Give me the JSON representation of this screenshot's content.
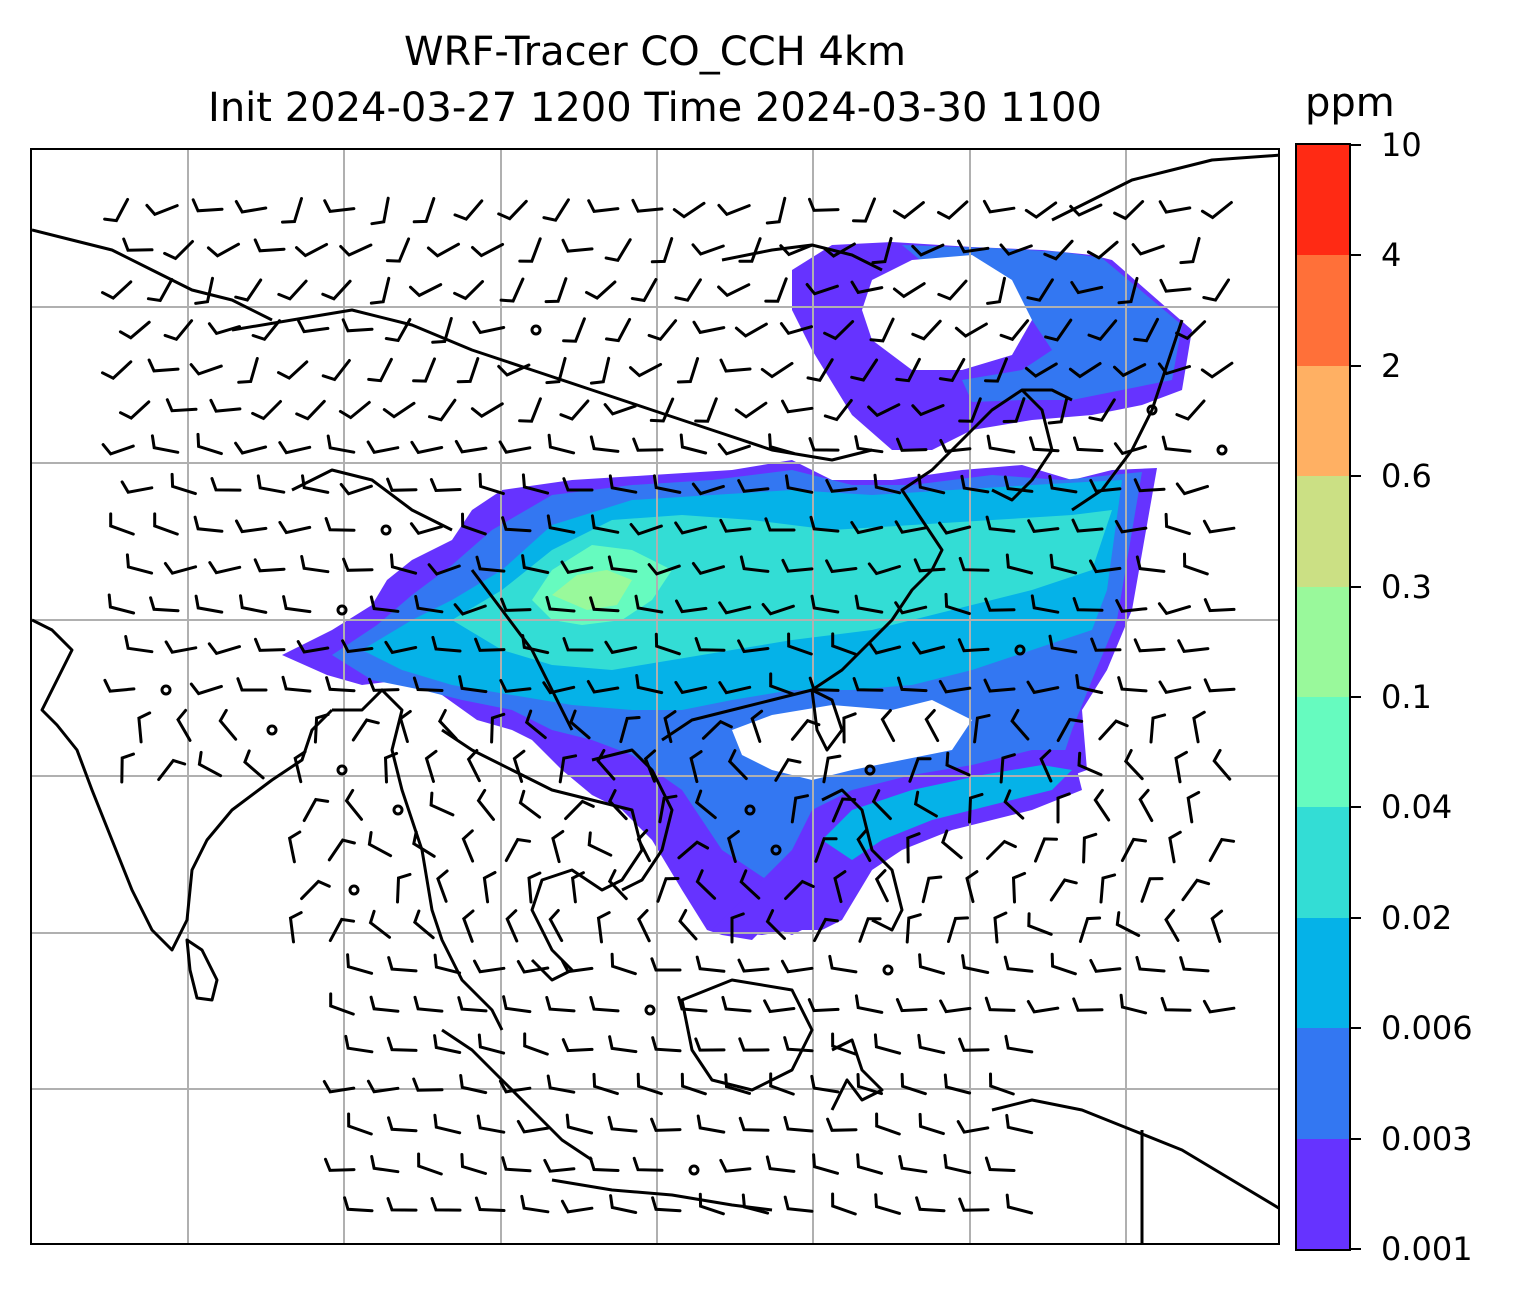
{
  "title_line1": "WRF-Tracer CO_CCH 4km",
  "title_line2": "Init 2024-03-27 1200 Time 2024-03-30 1100",
  "colorbar": {
    "unit_label": "ppm",
    "levels": [
      "0.001",
      "0.003",
      "0.006",
      "0.02",
      "0.04",
      "0.1",
      "0.3",
      "0.6",
      "2",
      "4",
      "10"
    ],
    "colors": [
      "#6633ff",
      "#3377f2",
      "#05b2e8",
      "#33ddd5",
      "#66fbbf",
      "#99f99b",
      "#cbe084",
      "#ffb063",
      "#ff7039",
      "#ff2a14"
    ]
  },
  "map": {
    "gridlines": true,
    "coastline_color": "#000000",
    "gridline_color": "#b0b0b0"
  },
  "chart_data": {
    "type": "heatmap",
    "title": "WRF-Tracer CO_CCH 4km  Init 2024-03-27 1200 Time 2024-03-30 1100",
    "variable": "CO_CCH",
    "colorbar_label": "ppm",
    "levels": [
      0.001,
      0.003,
      0.006,
      0.02,
      0.04,
      0.1,
      0.3,
      0.6,
      2,
      4,
      10
    ],
    "overlay": "wind barbs",
    "grid": true
  }
}
